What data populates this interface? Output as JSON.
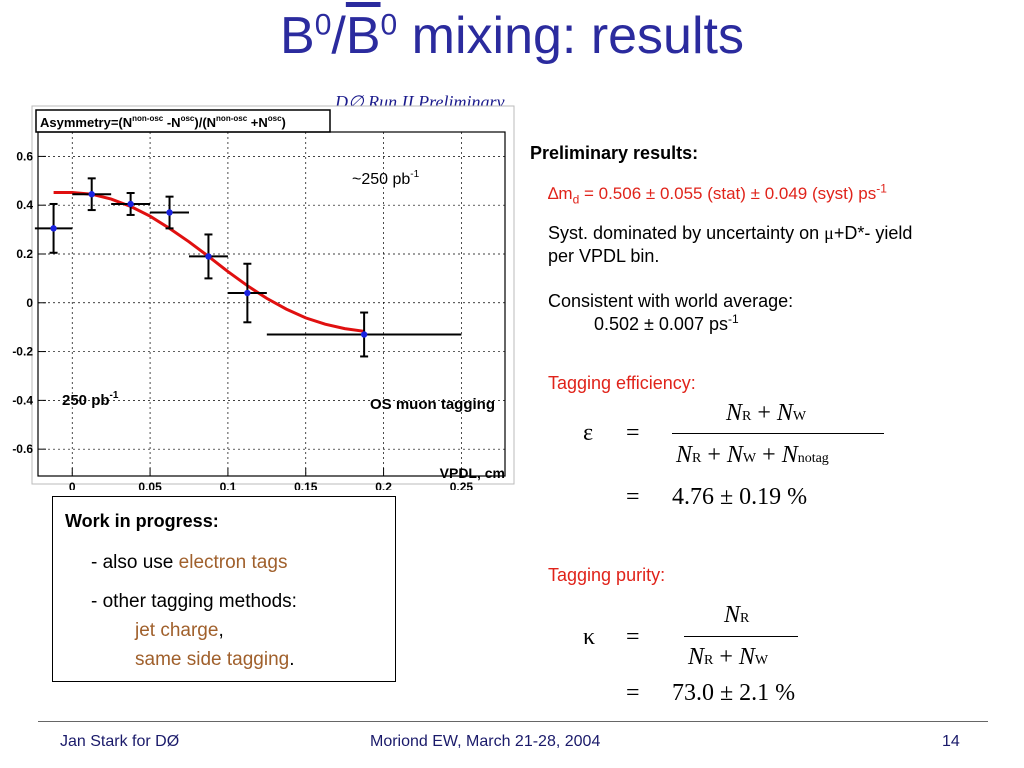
{
  "slide": {
    "title_pre": "B",
    "title_sup1": "0",
    "title_slash": "/",
    "title_bar": "B",
    "title_sup2": "0",
    "title_post": " mixing: results",
    "plot_caption": "D∅ Run II Preliminary"
  },
  "chart_data": {
    "type": "scatter",
    "title": "Asymmetry=(N^{non-osc} -N^{osc})/(N^{non-osc} +N^{osc})",
    "title_parts": {
      "a": "Asymmetry=(N",
      "b": "non-osc",
      "c": " -N",
      "d": "osc",
      "e": ")/(N",
      "f": "non-osc",
      "g": " +N",
      "h": "osc",
      "i": ")"
    },
    "xlabel": "VPDL, cm",
    "ylabel": "",
    "xlim": [
      -0.022,
      0.278
    ],
    "ylim": [
      -0.71,
      0.7
    ],
    "x_ticks": [
      0,
      0.05,
      0.1,
      0.15,
      0.2,
      0.25
    ],
    "x_tick_labels": [
      "0",
      "0.05",
      "0.1",
      "0.15",
      "0.2",
      "0.25"
    ],
    "y_ticks": [
      0.6,
      0.4,
      0.2,
      0,
      -0.2,
      -0.4,
      -0.6
    ],
    "y_tick_labels": [
      "0.6",
      "0.4",
      "0.2",
      "0",
      "-0.2",
      "-0.4",
      "-0.6"
    ],
    "grid": true,
    "points": [
      {
        "x": -0.012,
        "y": 0.305,
        "xerr": 0.012,
        "yerr": 0.1
      },
      {
        "x": 0.0125,
        "y": 0.445,
        "xerr": 0.0125,
        "yerr": 0.065
      },
      {
        "x": 0.0375,
        "y": 0.405,
        "xerr": 0.0125,
        "yerr": 0.045
      },
      {
        "x": 0.0625,
        "y": 0.37,
        "xerr": 0.0125,
        "yerr": 0.065
      },
      {
        "x": 0.0875,
        "y": 0.19,
        "xerr": 0.0125,
        "yerr": 0.09
      },
      {
        "x": 0.1125,
        "y": 0.04,
        "xerr": 0.0125,
        "yerr": 0.12
      },
      {
        "x": 0.1875,
        "y": -0.13,
        "xerr": 0.0625,
        "yerr": 0.09
      }
    ],
    "fit_curve": {
      "color": "#e01010",
      "points": [
        [
          -0.012,
          0.452
        ],
        [
          0,
          0.452
        ],
        [
          0.0125,
          0.445
        ],
        [
          0.025,
          0.425
        ],
        [
          0.0375,
          0.395
        ],
        [
          0.05,
          0.355
        ],
        [
          0.0625,
          0.305
        ],
        [
          0.075,
          0.25
        ],
        [
          0.0875,
          0.19
        ],
        [
          0.1,
          0.128
        ],
        [
          0.1125,
          0.07
        ],
        [
          0.125,
          0.018
        ],
        [
          0.1375,
          -0.026
        ],
        [
          0.15,
          -0.062
        ],
        [
          0.1625,
          -0.088
        ],
        [
          0.175,
          -0.106
        ],
        [
          0.1875,
          -0.117
        ]
      ]
    },
    "point_color": "#1a22e0",
    "annotations": {
      "lumi_top": "~250 pb",
      "lumi_top_sup": "-1",
      "lumi_bottom": "250 pb",
      "lumi_bottom_sup": "-1",
      "tagging": "OS muon tagging"
    }
  },
  "results": {
    "heading": "Preliminary results:",
    "dm_pre": "∆m",
    "dm_sub": "d",
    "dm_value": " = 0.506 ± 0.055 (stat) ± 0.049 (syst) ps",
    "dm_sup": "-1",
    "syst_pre": "Syst. dominated by uncertainty on ",
    "syst_mu": "μ",
    "syst_post": "+D*- yield",
    "syst_line2": "per VPDL bin.",
    "consistent": "Consistent with world average:",
    "world_value": "0.502 ± 0.007 ps",
    "world_sup": "-1",
    "eff_label": "Tagging efficiency:",
    "purity_label": "Tagging purity:"
  },
  "equations": {
    "eps_sym": "ε",
    "kappa_sym": "κ",
    "equals": "=",
    "N": "N",
    "sub_R": "R",
    "sub_W": "W",
    "sub_notag": "notag",
    "plus": "+",
    "eff_value": "4.76 ± 0.19 %",
    "purity_value": "73.0 ± 2.1 %"
  },
  "wip": {
    "title": "Work in progress:",
    "line1_pre": "- also use ",
    "line1_link": "electron tags",
    "line2": "- other tagging methods:",
    "line3": "jet charge",
    "line3_punct": ",",
    "line4": "same side tagging",
    "line4_punct": "."
  },
  "footer": {
    "left": "Jan Stark for DØ",
    "center": "Moriond EW, March 21-28, 2004",
    "page": "14"
  }
}
